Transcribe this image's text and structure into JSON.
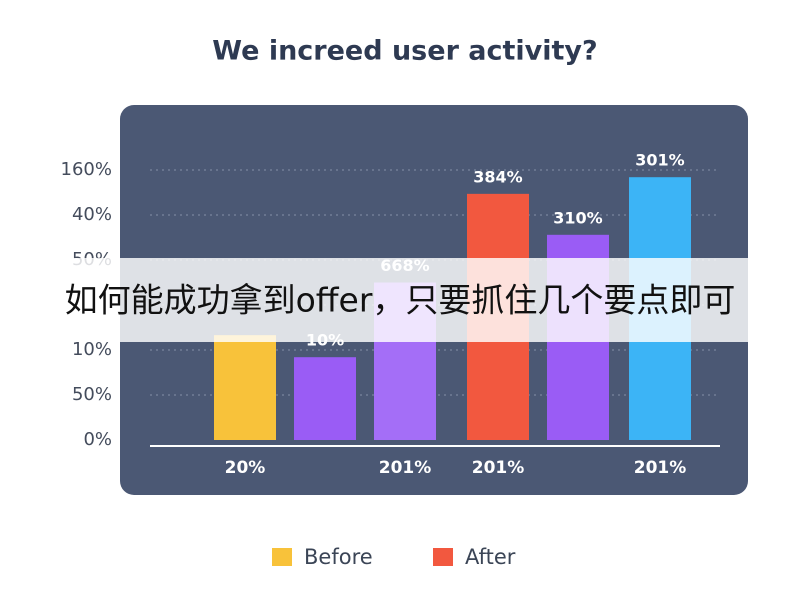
{
  "chart_data": {
    "type": "bar",
    "title": "We increed user activity?",
    "y_axis_labels": [
      "0%",
      "50%",
      "10%",
      null,
      "50%",
      "40%",
      "160%"
    ],
    "categories": [
      "20%",
      null,
      "201%",
      "201%",
      null,
      "201%"
    ],
    "values": [
      2.33,
      1.84,
      3.5,
      5.47,
      4.56,
      5.84
    ],
    "annotations": [
      null,
      "10%",
      "668%",
      "384%",
      "310%",
      "301%"
    ],
    "colors": [
      "#f8c23a",
      "#9a5cf5",
      "#a46ef7",
      "#f2583f",
      "#9a5cf5",
      "#3cb4f6"
    ],
    "ylim": [
      0,
      6
    ],
    "legend": [
      {
        "name": "Before",
        "color": "#f8c23a"
      },
      {
        "name": "After",
        "color": "#f2583f"
      }
    ],
    "banner": "如何能成功拿到offer，只要抓住几个要点即可"
  }
}
